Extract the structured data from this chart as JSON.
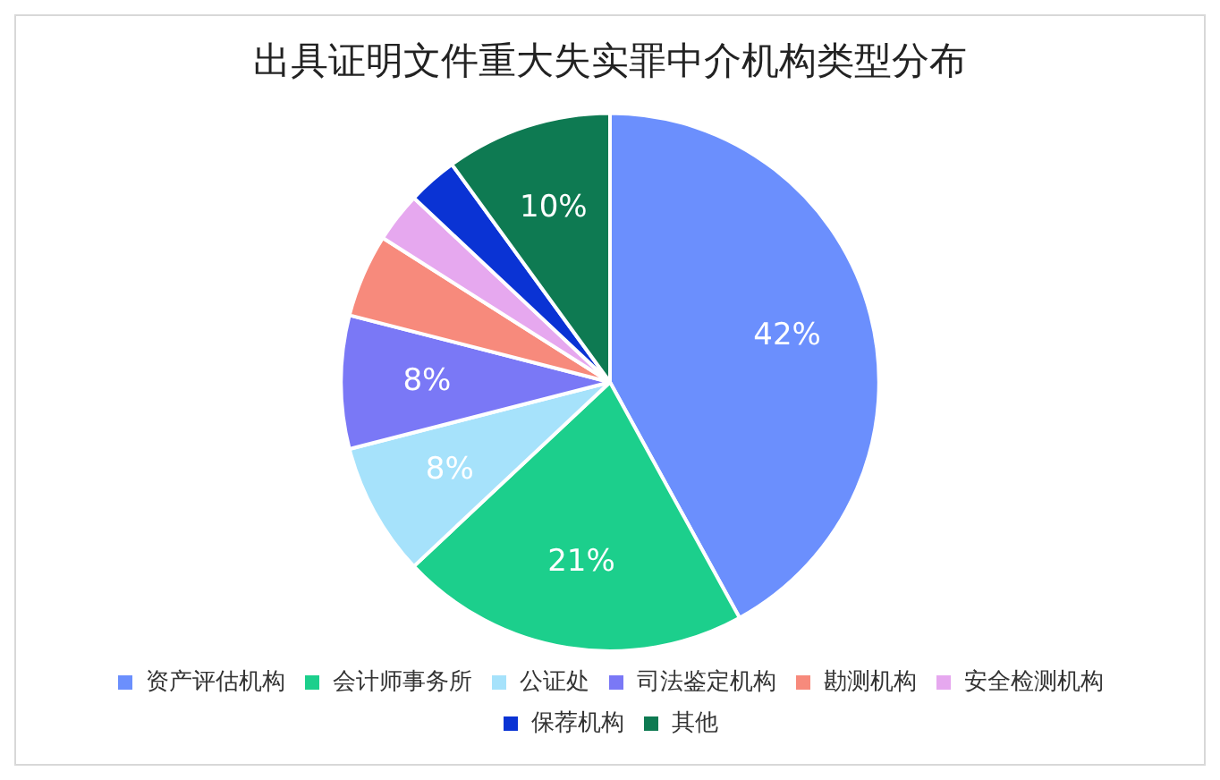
{
  "chart_data": {
    "type": "pie",
    "title": "出具证明文件重大失实罪中介机构类型分布",
    "categories": [
      "资产评估机构",
      "会计师事务所",
      "公证处",
      "司法鉴定机构",
      "勘测机构",
      "安全检测机构",
      "保荐机构",
      "其他"
    ],
    "values": [
      42,
      21,
      8,
      8,
      5,
      3,
      3,
      10
    ],
    "colors": [
      "#6b8ffd",
      "#1ccf8c",
      "#a6e2fb",
      "#7a78f6",
      "#f78a7c",
      "#e6a8ef",
      "#0a33d4",
      "#0e7a52"
    ],
    "value_labels": [
      "42%",
      "21%",
      "8%",
      "8%",
      null,
      null,
      null,
      "10%"
    ],
    "legend": "bottom"
  }
}
